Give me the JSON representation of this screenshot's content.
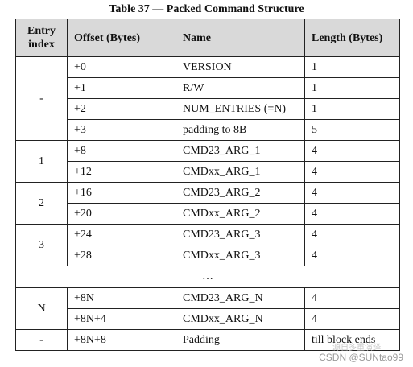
{
  "caption": "Table 37 — Packed Command Structure",
  "headers": {
    "entry_line1": "Entry",
    "entry_line2": "index",
    "offset": "Offset (Bytes)",
    "name": "Name",
    "length": "Length (Bytes)"
  },
  "groups": {
    "g0": {
      "entry": "-",
      "rows": [
        {
          "offset": "+0",
          "name": "VERSION",
          "length": "1"
        },
        {
          "offset": "+1",
          "name": "R/W",
          "length": "1"
        },
        {
          "offset": "+2",
          "name": "NUM_ENTRIES (=N)",
          "length": "1"
        },
        {
          "offset": "+3",
          "name": "padding to 8B",
          "length": "5"
        }
      ]
    },
    "g1": {
      "entry": "1",
      "rows": [
        {
          "offset": "+8",
          "name": "CMD23_ARG_1",
          "length": "4"
        },
        {
          "offset": "+12",
          "name": "CMDxx_ARG_1",
          "length": "4"
        }
      ]
    },
    "g2": {
      "entry": "2",
      "rows": [
        {
          "offset": "+16",
          "name": "CMD23_ARG_2",
          "length": "4"
        },
        {
          "offset": "+20",
          "name": "CMDxx_ARG_2",
          "length": "4"
        }
      ]
    },
    "g3": {
      "entry": "3",
      "rows": [
        {
          "offset": "+24",
          "name": "CMD23_ARG_3",
          "length": "4"
        },
        {
          "offset": "+28",
          "name": "CMDxx_ARG_3",
          "length": "4"
        }
      ]
    },
    "ellipsis": "…",
    "gN": {
      "entry": "N",
      "rows": [
        {
          "offset": "+8N",
          "name": "CMD23_ARG_N",
          "length": "4"
        },
        {
          "offset": "+8N+4",
          "name": "CMDxx_ARG_N",
          "length": "4"
        }
      ]
    },
    "last": {
      "entry": "-",
      "offset": "+8N+8",
      "name": "Padding",
      "length": "till block ends"
    }
  },
  "watermark": "CSDN @SUNtao99",
  "overlay_text": "源自多重演绎"
}
